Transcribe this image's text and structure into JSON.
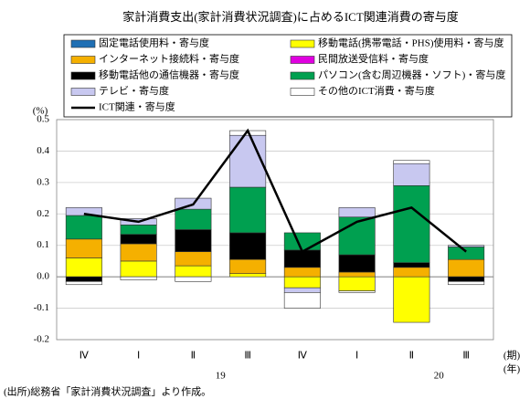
{
  "chart_data": {
    "type": "bar",
    "stacked": true,
    "title": "家計消費支出(家計消費状況調査)に占めるICT関連消費の寄与度",
    "y_label": "(%)",
    "x_unit": "(期)",
    "x_group_unit": "(年)",
    "categories": [
      "Ⅳ",
      "Ⅰ",
      "Ⅱ",
      "Ⅲ",
      "Ⅳ",
      "Ⅰ",
      "Ⅱ",
      "Ⅲ"
    ],
    "x_groups": [
      "19",
      "20"
    ],
    "ylim": [
      -0.2,
      0.5
    ],
    "yticks": [
      -0.2,
      -0.1,
      {
        "value": 0,
        "label": "0.0"
      },
      0.1,
      0.2,
      0.3,
      0.4,
      0.5
    ],
    "grid": true,
    "series": [
      {
        "name": "固定電話使用料・寄与度",
        "color": "#1f6fb4",
        "values": [
          0,
          0,
          0,
          0,
          0,
          0,
          0,
          0
        ]
      },
      {
        "name": "移動電話(携帯電話・PHS)使用料・寄与度",
        "color": "#ffff00",
        "values": [
          0.06,
          0.05,
          0.035,
          0.01,
          -0.035,
          -0.045,
          -0.145,
          0
        ]
      },
      {
        "name": "インターネット接続料・寄与度",
        "color": "#f5b000",
        "values": [
          0.06,
          0.055,
          0.045,
          0.045,
          0.03,
          0.015,
          0.03,
          0.055
        ]
      },
      {
        "name": "民間放送受信料・寄与度",
        "color": "#e000e0",
        "values": [
          0,
          0,
          0,
          0,
          0,
          0,
          0,
          0
        ]
      },
      {
        "name": "移動電話他の通信機器・寄与度",
        "color": "#000000",
        "values": [
          -0.015,
          0.03,
          0.07,
          0.085,
          0.055,
          0.055,
          0.015,
          -0.015
        ]
      },
      {
        "name": "パソコン(含む周辺機器・ソフト)・寄与度",
        "color": "#00a050",
        "values": [
          0.075,
          0.03,
          0.065,
          0.145,
          0.055,
          0.12,
          0.245,
          0.04
        ]
      },
      {
        "name": "テレビ・寄与度",
        "color": "#c8c8f0",
        "values": [
          0.025,
          0.02,
          0.035,
          0.165,
          -0.015,
          0.03,
          0.07,
          0.005
        ]
      },
      {
        "name": "その他のICT消費・寄与度",
        "color": "#ffffff",
        "values": [
          -0.01,
          -0.01,
          -0.015,
          0.015,
          -0.05,
          -0.005,
          0.01,
          -0.01
        ]
      },
      {
        "name": "ICT関連・寄与度",
        "type": "line",
        "color": "#000000",
        "values": [
          0.2,
          0.175,
          0.23,
          0.465,
          0.08,
          0.175,
          0.22,
          0.08
        ]
      }
    ],
    "source": "(出所)総務省「家計消費状況調査」より作成。"
  }
}
